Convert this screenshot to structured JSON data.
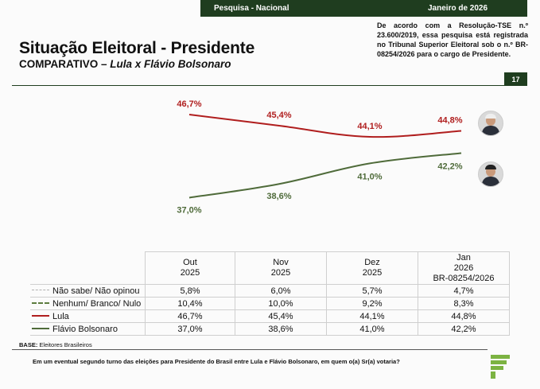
{
  "header": {
    "survey": "Pesquisa - Nacional",
    "date": "Janeiro de 2026",
    "title": "Situação Eleitoral - Presidente",
    "subtitle_prefix": "COMPARATIVO – ",
    "subtitle_main": "Lula x Flávio Bolsonaro",
    "tse_notice": "De acordo com a Resolução-TSE n.º 23.600/2019, essa pesquisa está registrada no Tribunal Superior Eleitoral sob o n.º BR-08254/2026 para o cargo de Presidente.",
    "page_number": "17"
  },
  "colors": {
    "brand_green": "#1f3d1f",
    "lula": "#b01e1e",
    "flavio": "#4f6b3a"
  },
  "chart_data": {
    "type": "line",
    "title": "Situação Eleitoral - Presidente",
    "categories": [
      "Out 2025",
      "Nov 2025",
      "Dez 2025",
      "Jan 2026"
    ],
    "series": [
      {
        "name": "Lula",
        "values": [
          46.7,
          45.4,
          44.1,
          44.8
        ],
        "labels": [
          "46,7%",
          "45,4%",
          "44,1%",
          "44,8%"
        ]
      },
      {
        "name": "Flávio Bolsonaro",
        "values": [
          37.0,
          38.6,
          41.0,
          42.2
        ],
        "labels": [
          "37,0%",
          "38,6%",
          "41,0%",
          "42,2%"
        ]
      }
    ],
    "ylim": [
      35,
      48
    ],
    "grid": false,
    "xlabel": "",
    "ylabel": ""
  },
  "table": {
    "columns": [
      {
        "line1": "Out",
        "line2": "2025",
        "line3": ""
      },
      {
        "line1": "Nov",
        "line2": "2025",
        "line3": ""
      },
      {
        "line1": "Dez",
        "line2": "2025",
        "line3": ""
      },
      {
        "line1": "Jan",
        "line2": "2026",
        "line3": "BR-08254/2026"
      }
    ],
    "rows": [
      {
        "label": "Não sabe/ Não opinou",
        "style": "dotted",
        "values": [
          "5,8%",
          "6,0%",
          "5,7%",
          "4,7%"
        ]
      },
      {
        "label": "Nenhum/ Branco/ Nulo",
        "style": "dashed",
        "values": [
          "10,4%",
          "10,0%",
          "9,2%",
          "8,3%"
        ]
      },
      {
        "label": "Lula",
        "style": "lula",
        "values": [
          "46,7%",
          "45,4%",
          "44,1%",
          "44,8%"
        ]
      },
      {
        "label": "Flávio Bolsonaro",
        "style": "fb",
        "values": [
          "37,0%",
          "38,6%",
          "41,0%",
          "42,2%"
        ]
      }
    ]
  },
  "footer": {
    "base_label": "BASE:",
    "base_value": " Eleitores Brasileiros",
    "question": "Em um eventual segundo turno das eleições para Presidente do Brasil entre Lula e Flávio Bolsonaro, em quem o(a) Sr(a) votaria?"
  }
}
